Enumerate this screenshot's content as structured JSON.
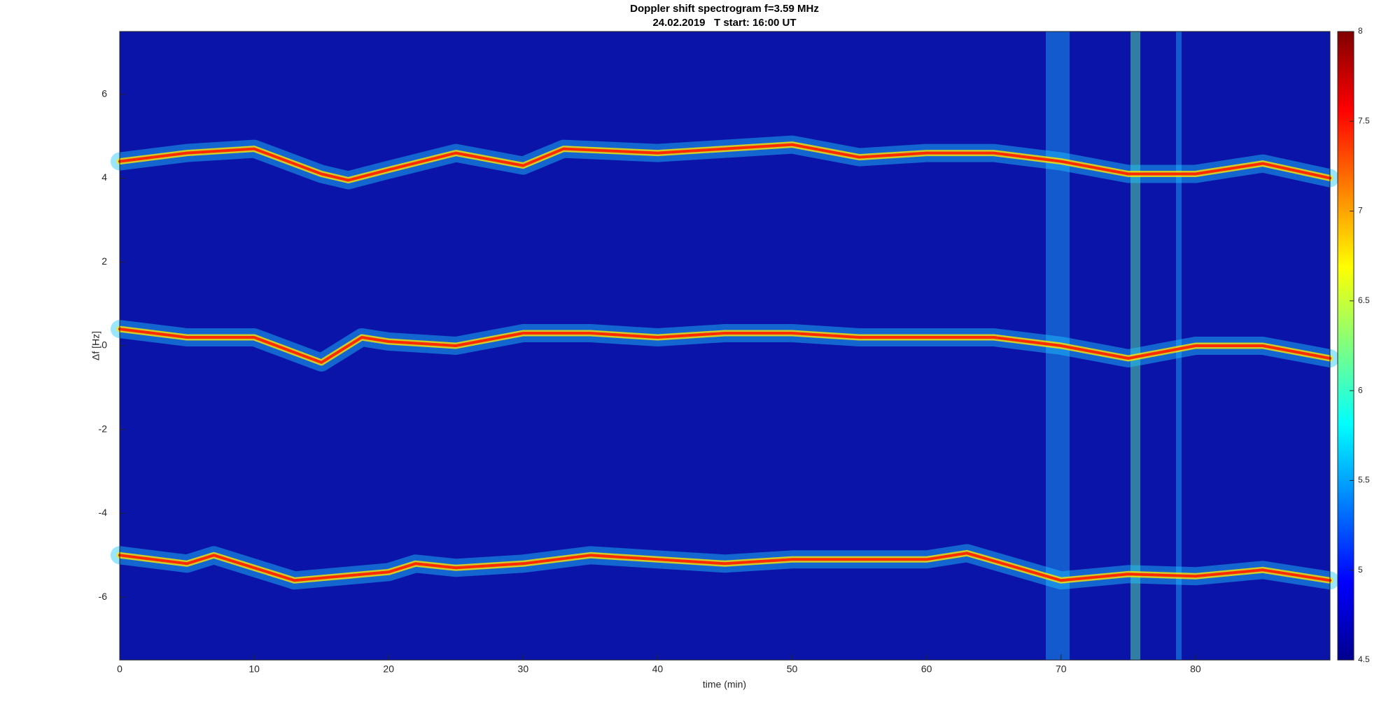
{
  "chart_data": {
    "type": "spectrogram",
    "title": "Doppler shift spectrogram f=3.59 MHz",
    "subtitle": "24.02.2019   T start: 16:00 UT",
    "x_label": "time (min)",
    "y_label": "Δf [Hz]",
    "xlim": [
      0,
      90
    ],
    "xticks": [
      0,
      10,
      20,
      30,
      40,
      50,
      60,
      70,
      80
    ],
    "ylim": [
      -7.5,
      7.5
    ],
    "yticks": [
      -6,
      -4,
      -2,
      0,
      2,
      4,
      6
    ],
    "background_color": "#0a14a8",
    "colorbar": {
      "lim": [
        4.5,
        8
      ],
      "ticks": [
        4.5,
        5,
        5.5,
        6,
        6.5,
        7,
        7.5,
        8
      ],
      "colormap": "jet"
    },
    "series": [
      {
        "color": "#ff2a00",
        "x": [
          0,
          5,
          10,
          15,
          17,
          20,
          25,
          30,
          33,
          40,
          45,
          50,
          55,
          60,
          65,
          70,
          75,
          80,
          85,
          90
        ],
        "values": [
          4.4,
          4.6,
          4.7,
          4.1,
          3.95,
          4.2,
          4.6,
          4.3,
          4.7,
          4.6,
          4.7,
          4.8,
          4.5,
          4.6,
          4.6,
          4.4,
          4.1,
          4.1,
          4.35,
          4.0
        ]
      },
      {
        "color": "#ff2a00",
        "x": [
          0,
          5,
          10,
          15,
          18,
          20,
          25,
          30,
          35,
          40,
          45,
          50,
          55,
          60,
          65,
          70,
          75,
          80,
          85,
          90
        ],
        "values": [
          0.4,
          0.2,
          0.2,
          -0.4,
          0.2,
          0.1,
          0.0,
          0.3,
          0.3,
          0.2,
          0.3,
          0.3,
          0.2,
          0.2,
          0.2,
          0.0,
          -0.3,
          0.0,
          0.0,
          -0.3
        ]
      },
      {
        "color": "#ff2a00",
        "x": [
          0,
          5,
          7,
          10,
          13,
          20,
          22,
          25,
          30,
          35,
          40,
          45,
          50,
          55,
          60,
          63,
          70,
          75,
          80,
          85,
          90
        ],
        "values": [
          -5.0,
          -5.2,
          -5.0,
          -5.3,
          -5.6,
          -5.4,
          -5.2,
          -5.3,
          -5.2,
          -5.0,
          -5.1,
          -5.2,
          -5.1,
          -5.1,
          -5.1,
          -4.95,
          -5.6,
          -5.45,
          -5.5,
          -5.35,
          -5.6
        ]
      }
    ]
  }
}
